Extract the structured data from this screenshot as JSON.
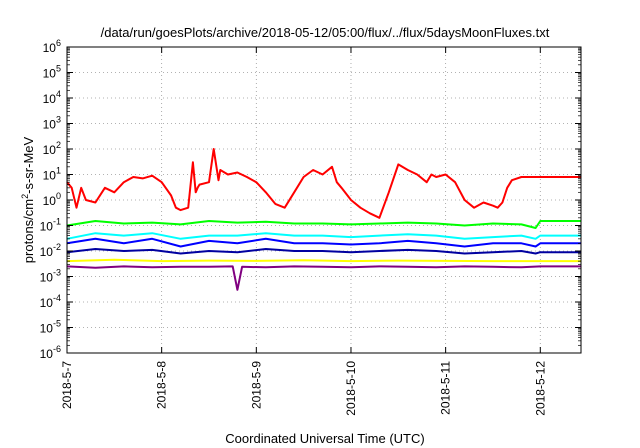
{
  "chart_data": {
    "type": "line",
    "title": "/data/run/goesPlots/archive/2018-05-12/05:00/flux/../flux/5daysMoonFluxes.txt",
    "xlabel": "Coordinated Universal Time (UTC)",
    "ylabel": "protons/cm2-s-sr-MeV",
    "ylabel_parts": [
      "protons/cm",
      "2",
      "-s-sr-MeV"
    ],
    "y_scale": "log",
    "ylim": [
      1e-06,
      1000000.0
    ],
    "xlim_days": [
      0,
      5.43
    ],
    "grid": true,
    "grid_style": "dotted",
    "legend": "none",
    "x_tick_labels": [
      "2018-5-7",
      "2018-5-8",
      "2018-5-9",
      "2018-5-10",
      "2018-5-11",
      "2018-5-12"
    ],
    "y_tick_exponents": [
      -6,
      -5,
      -4,
      -3,
      -2,
      -1,
      0,
      1,
      2,
      3,
      4,
      5,
      6
    ],
    "y_tick_base": "10",
    "series": [
      {
        "color": "#ff0000",
        "x": [
          0.0,
          0.05,
          0.1,
          0.15,
          0.2,
          0.3,
          0.4,
          0.5,
          0.6,
          0.7,
          0.8,
          0.9,
          1.0,
          1.1,
          1.15,
          1.2,
          1.28,
          1.33,
          1.36,
          1.38,
          1.4,
          1.5,
          1.55,
          1.6,
          1.62,
          1.7,
          1.8,
          1.9,
          2.0,
          2.1,
          2.2,
          2.3,
          2.4,
          2.5,
          2.6,
          2.7,
          2.8,
          2.85,
          2.9,
          3.0,
          3.1,
          3.2,
          3.3,
          3.4,
          3.5,
          3.6,
          3.7,
          3.8,
          3.85,
          3.9,
          4.0,
          4.1,
          4.2,
          4.3,
          4.4,
          4.5,
          4.55,
          4.6,
          4.65,
          4.7,
          4.8,
          4.9,
          5.0,
          5.1,
          5.2,
          5.3,
          5.43
        ],
        "values": [
          5,
          3,
          0.5,
          3,
          1,
          0.8,
          3,
          2,
          5,
          8,
          7,
          9,
          5,
          1.5,
          0.5,
          0.4,
          0.5,
          30,
          2,
          3,
          4,
          5,
          100,
          6,
          15,
          10,
          12,
          8,
          5,
          2,
          0.7,
          0.5,
          2,
          8,
          15,
          10,
          20,
          5,
          3,
          1,
          0.5,
          0.3,
          0.2,
          2,
          25,
          15,
          10,
          5,
          10,
          8,
          10,
          5,
          1,
          0.5,
          0.8,
          0.6,
          0.5,
          0.8,
          3,
          6,
          8,
          8,
          8,
          8,
          8,
          8,
          8
        ]
      },
      {
        "color": "#00ff00",
        "x": [
          0.0,
          0.3,
          0.6,
          0.9,
          1.2,
          1.5,
          1.8,
          2.1,
          2.4,
          2.7,
          3.0,
          3.3,
          3.6,
          3.9,
          4.2,
          4.5,
          4.8,
          4.95,
          5.0,
          5.43
        ],
        "values": [
          0.1,
          0.15,
          0.12,
          0.13,
          0.11,
          0.15,
          0.13,
          0.14,
          0.12,
          0.12,
          0.11,
          0.12,
          0.13,
          0.12,
          0.1,
          0.12,
          0.11,
          0.08,
          0.15,
          0.15
        ]
      },
      {
        "color": "#00ffff",
        "x": [
          0.0,
          0.3,
          0.6,
          0.9,
          1.2,
          1.5,
          1.8,
          2.1,
          2.4,
          2.7,
          3.0,
          3.3,
          3.6,
          3.9,
          4.2,
          4.5,
          4.8,
          4.95,
          5.0,
          5.43
        ],
        "values": [
          0.03,
          0.05,
          0.04,
          0.05,
          0.03,
          0.04,
          0.04,
          0.05,
          0.04,
          0.04,
          0.035,
          0.04,
          0.045,
          0.04,
          0.03,
          0.035,
          0.04,
          0.03,
          0.04,
          0.04
        ]
      },
      {
        "color": "#0000ff",
        "x": [
          0.0,
          0.3,
          0.6,
          0.9,
          1.2,
          1.5,
          1.8,
          2.1,
          2.4,
          2.7,
          3.0,
          3.3,
          3.6,
          3.9,
          4.2,
          4.5,
          4.8,
          4.95,
          5.0,
          5.43
        ],
        "values": [
          0.02,
          0.03,
          0.02,
          0.03,
          0.015,
          0.025,
          0.02,
          0.03,
          0.02,
          0.02,
          0.018,
          0.02,
          0.025,
          0.02,
          0.015,
          0.02,
          0.02,
          0.015,
          0.02,
          0.02
        ]
      },
      {
        "color": "#0000a0",
        "x": [
          0.0,
          0.3,
          0.6,
          0.9,
          1.2,
          1.5,
          1.8,
          2.1,
          2.4,
          2.7,
          3.0,
          3.3,
          3.6,
          3.9,
          4.2,
          4.5,
          4.8,
          4.95,
          5.0,
          5.43
        ],
        "values": [
          0.009,
          0.012,
          0.01,
          0.011,
          0.008,
          0.01,
          0.009,
          0.012,
          0.01,
          0.01,
          0.009,
          0.01,
          0.011,
          0.01,
          0.008,
          0.009,
          0.01,
          0.008,
          0.009,
          0.009
        ]
      },
      {
        "color": "#ffff00",
        "x": [
          0.0,
          0.5,
          1.0,
          1.5,
          2.0,
          2.5,
          3.0,
          3.5,
          4.0,
          4.5,
          5.0,
          5.43
        ],
        "values": [
          0.004,
          0.0045,
          0.004,
          0.0042,
          0.0041,
          0.0043,
          0.004,
          0.0042,
          0.0041,
          0.004,
          0.004,
          0.004
        ]
      },
      {
        "color": "#800080",
        "x": [
          0.0,
          0.3,
          0.6,
          0.9,
          1.2,
          1.5,
          1.75,
          1.8,
          1.85,
          2.1,
          2.4,
          2.7,
          3.0,
          3.3,
          3.6,
          3.9,
          4.2,
          4.5,
          4.8,
          5.0,
          5.43
        ],
        "values": [
          0.0025,
          0.0022,
          0.0025,
          0.0023,
          0.0024,
          0.0024,
          0.0025,
          0.0003,
          0.0024,
          0.0023,
          0.0025,
          0.0024,
          0.0023,
          0.0025,
          0.0024,
          0.0023,
          0.0025,
          0.0024,
          0.0023,
          0.0025,
          0.0025
        ]
      }
    ]
  }
}
